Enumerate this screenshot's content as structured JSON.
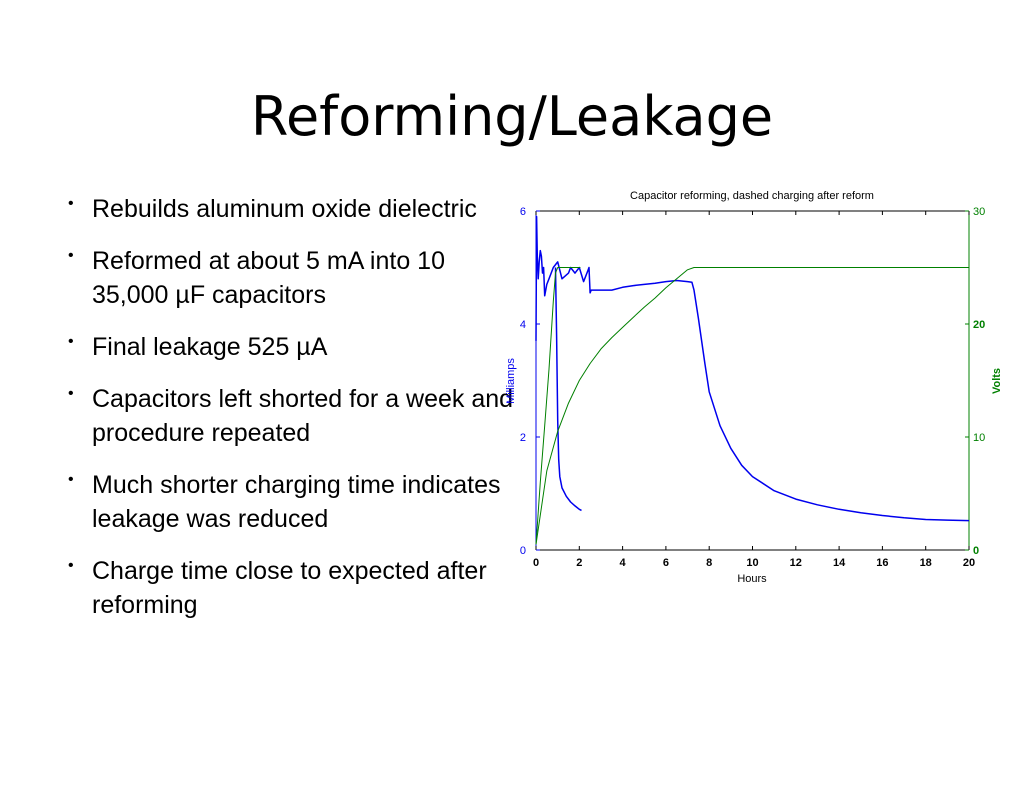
{
  "slide": {
    "title": "Reforming/Leakage",
    "bullets": [
      "Rebuilds aluminum oxide dielectric",
      "Reformed at about 5 mA into 10 35,000 µF capacitors",
      "Final leakage 525 µA",
      "Capacitors left shorted for a week and procedure repeated",
      "Much shorter charging time indicates leakage was reduced",
      "Charge time close to expected after reforming"
    ]
  },
  "chart_data": {
    "type": "line",
    "title": "Capacitor reforming, dashed charging after reform",
    "xlabel": "Hours",
    "ylabel": "Milliamps",
    "y2label": "Volts",
    "xlim": [
      0,
      20
    ],
    "ylim": [
      0,
      6
    ],
    "y2lim": [
      0,
      30
    ],
    "xticks": [
      0,
      2,
      4,
      6,
      8,
      10,
      12,
      14,
      16,
      18,
      20
    ],
    "yticks": [
      0,
      2,
      4,
      6
    ],
    "y2ticks": [
      0,
      10,
      20,
      30
    ],
    "grid": false,
    "colors": {
      "current": "#0000ee",
      "voltage": "#008000"
    },
    "series": [
      {
        "axis": "left",
        "x": [
          0,
          0.03,
          0.06,
          0.1,
          0.15,
          0.2,
          0.25,
          0.3,
          0.35,
          0.4,
          0.5,
          0.6,
          0.8,
          1.0,
          1.2,
          1.5,
          1.6,
          1.8,
          2.0,
          2.2,
          2.4,
          2.45,
          2.5,
          2.55,
          3.0,
          3.5,
          4.0,
          4.5,
          5.0,
          5.5,
          6.0,
          6.5,
          7.0,
          7.2,
          7.3,
          7.5,
          7.8,
          8.0,
          8.5,
          9.0,
          9.5,
          10.0,
          11.0,
          12.0,
          13.0,
          14.0,
          15.0,
          16.0,
          17.0,
          18.0,
          19.0,
          20.0
        ],
        "y": [
          3.7,
          5.9,
          5.2,
          4.8,
          5.1,
          5.3,
          5.2,
          4.9,
          5.0,
          4.5,
          4.7,
          4.8,
          5.0,
          5.1,
          4.8,
          4.9,
          5.0,
          4.9,
          5.0,
          4.75,
          4.95,
          5.0,
          4.55,
          4.6,
          4.6,
          4.6,
          4.65,
          4.68,
          4.7,
          4.72,
          4.75,
          4.77,
          4.75,
          4.74,
          4.6,
          4.1,
          3.3,
          2.8,
          2.2,
          1.8,
          1.5,
          1.3,
          1.05,
          0.9,
          0.8,
          0.72,
          0.66,
          0.61,
          0.57,
          0.54,
          0.53,
          0.52
        ]
      },
      {
        "axis": "left",
        "x": [
          0.9,
          0.95,
          1.0,
          1.05,
          1.1,
          1.2,
          1.4,
          1.6,
          1.8,
          2.0,
          2.1
        ],
        "y": [
          5.0,
          3.8,
          2.3,
          1.6,
          1.3,
          1.1,
          0.95,
          0.85,
          0.78,
          0.72,
          0.7
        ]
      },
      {
        "axis": "right",
        "x": [
          0,
          0.5,
          1.0,
          1.5,
          2.0,
          2.5,
          3.0,
          3.5,
          4.0,
          4.5,
          5.0,
          5.5,
          6.0,
          6.5,
          7.0,
          7.3,
          7.5,
          8.0,
          10.0,
          14.0,
          18.0,
          20.0
        ],
        "y": [
          0.5,
          7,
          10.5,
          13,
          15,
          16.5,
          17.8,
          18.8,
          19.7,
          20.6,
          21.5,
          22.3,
          23.2,
          24.0,
          24.8,
          25.0,
          25.0,
          25.0,
          25.0,
          25.0,
          25.0,
          25.0
        ]
      },
      {
        "axis": "right",
        "x": [
          0,
          0.2,
          0.4,
          0.6,
          0.8,
          0.9,
          1.0,
          1.5,
          2.0,
          2.05
        ],
        "y": [
          0.5,
          6,
          11,
          16,
          22,
          24.5,
          25,
          25,
          25,
          25
        ]
      }
    ]
  }
}
